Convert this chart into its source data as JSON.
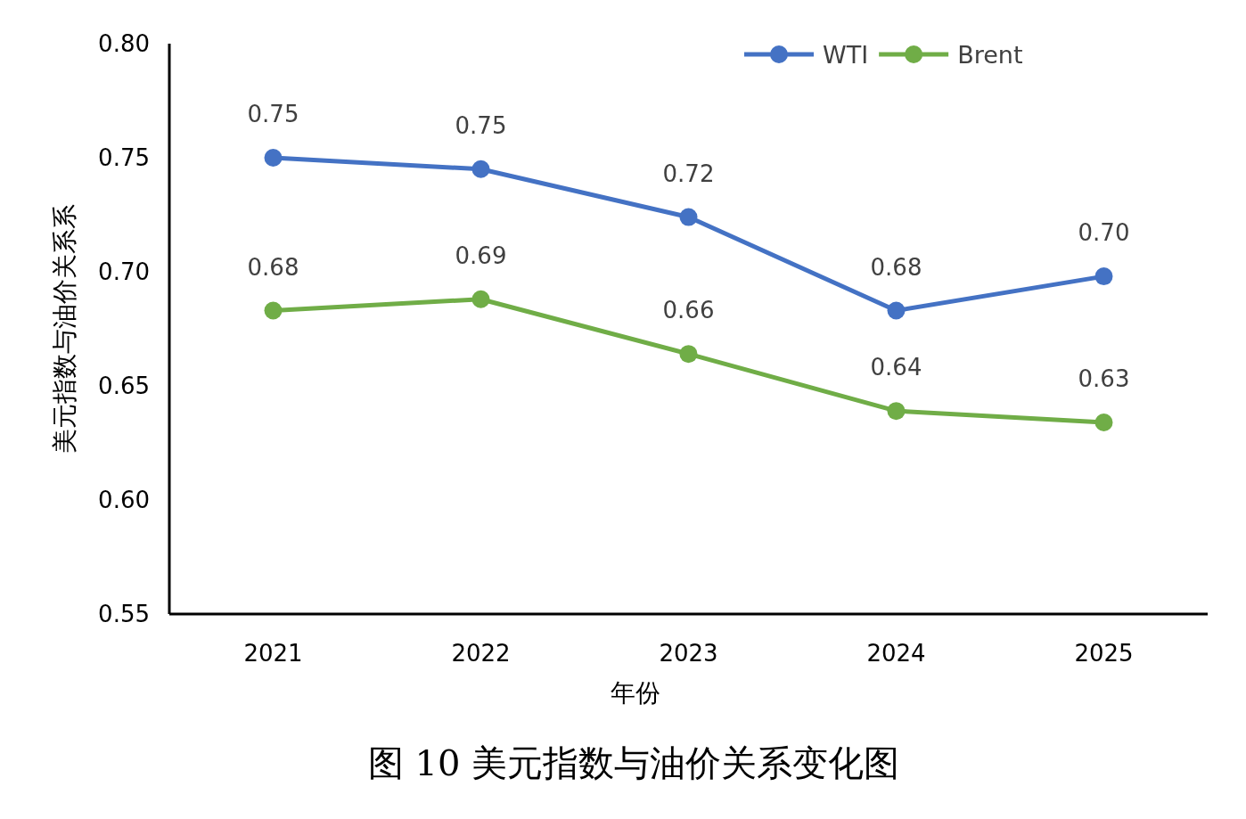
{
  "chart_data": {
    "type": "line",
    "title": "图 10  美元指数与油价关系变化图",
    "xlabel": "年份",
    "ylabel": "美元指数与油价关系系",
    "categories": [
      "2021",
      "2022",
      "2023",
      "2024",
      "2025"
    ],
    "series": [
      {
        "name": "WTI",
        "color": "#4472c4",
        "values": [
          0.75,
          0.745,
          0.724,
          0.683,
          0.698
        ],
        "value_labels": [
          "0.75",
          "0.75",
          "0.72",
          "0.68",
          "0.70"
        ]
      },
      {
        "name": "Brent",
        "color": "#70ad47",
        "values": [
          0.683,
          0.688,
          0.664,
          0.639,
          0.634
        ],
        "value_labels": [
          "0.68",
          "0.69",
          "0.66",
          "0.64",
          "0.63"
        ]
      }
    ],
    "ylim": [
      0.55,
      0.8
    ],
    "yticks": [
      "0.55",
      "0.60",
      "0.65",
      "0.70",
      "0.75",
      "0.80"
    ],
    "grid": false,
    "legend": "top right",
    "marker": "circle",
    "line_style": "solid"
  }
}
